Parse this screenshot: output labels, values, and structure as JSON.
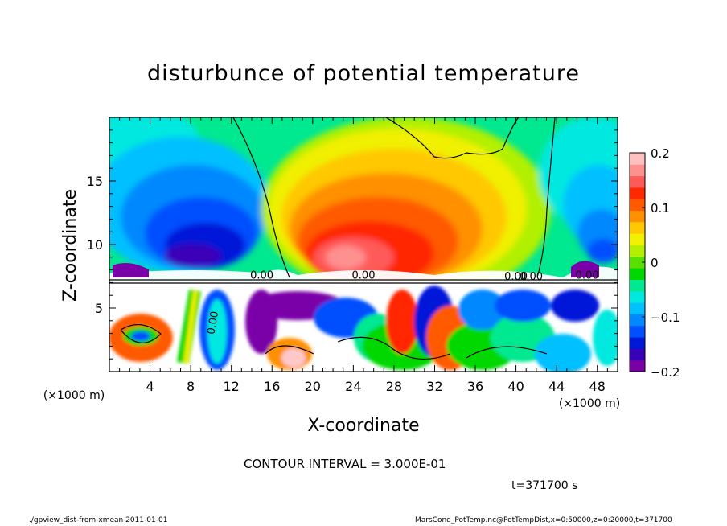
{
  "chart_data": {
    "type": "heatmap",
    "title": "disturbunce of potential temperature",
    "xlabel": "X-coordinate",
    "ylabel": "Z-coordinate",
    "x_unit": "(×1000 m)",
    "y_unit": "(×1000 m)",
    "xlim": [
      0,
      50
    ],
    "ylim": [
      0,
      20
    ],
    "x_ticks": [
      4,
      8,
      12,
      16,
      20,
      24,
      28,
      32,
      36,
      40,
      44,
      48
    ],
    "y_ticks": [
      5,
      10,
      15
    ],
    "colorbar": {
      "ticks": [
        0.2,
        0.1,
        0,
        -0.1,
        -0.2
      ],
      "tick_labels": [
        "0.2",
        "0.1",
        "0",
        "−0.1",
        "−0.2"
      ],
      "range": [
        -0.2,
        0.2
      ],
      "colors": [
        "#7a00a8",
        "#3a00b8",
        "#0018d8",
        "#0050ff",
        "#0088ff",
        "#00c0ff",
        "#00e8e0",
        "#00e890",
        "#00d800",
        "#5ae000",
        "#b0f000",
        "#f0f000",
        "#ffc800",
        "#ff9000",
        "#ff5a00",
        "#ff2800",
        "#ff5a5a",
        "#ff9090",
        "#ffc0c0"
      ]
    },
    "contour_labels": [
      "0.00",
      "0.00",
      "0.00",
      "0.00",
      "0.00",
      "0.00"
    ],
    "grid": false
  },
  "contour_interval": "CONTOUR INTERVAL = 3.000E-01",
  "time_label": "t=371700 s",
  "footer_left": "./gpview_dist-from-xmean   2011-01-01",
  "footer_right": "MarsCond_PotTemp.nc@PotTempDist,x=0:50000,z=0:20000,t=371700"
}
